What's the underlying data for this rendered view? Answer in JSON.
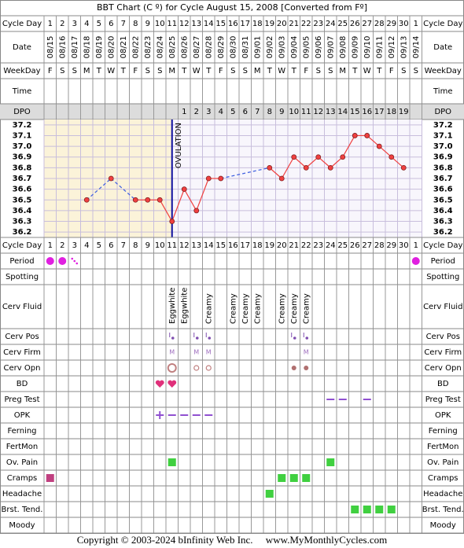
{
  "title": "BBT Chart (C º) for Cycle August 15, 2008  [Converted from Fº]",
  "labels": {
    "cycle_day": "Cycle Day",
    "date": "Date",
    "weekday": "WeekDay",
    "time": "Time",
    "dpo": "DPO"
  },
  "dates": [
    "08/15",
    "08/16",
    "08/17",
    "08/18",
    "08/19",
    "08/20",
    "08/21",
    "08/22",
    "08/23",
    "08/24",
    "08/25",
    "08/26",
    "08/27",
    "08/28",
    "08/29",
    "08/30",
    "08/31",
    "09/01",
    "09/02",
    "09/03",
    "09/04",
    "09/05",
    "09/06",
    "09/07",
    "09/08",
    "09/09",
    "09/10",
    "09/11",
    "09/12",
    "09/13",
    "09/14"
  ],
  "weekdays": [
    "F",
    "S",
    "S",
    "M",
    "T",
    "W",
    "T",
    "F",
    "S",
    "S",
    "M",
    "T",
    "W",
    "T",
    "F",
    "S",
    "S",
    "M",
    "T",
    "W",
    "T",
    "F",
    "S",
    "S",
    "M",
    "T",
    "W",
    "T",
    "F",
    "S",
    "S"
  ],
  "dpo": [
    null,
    null,
    null,
    null,
    null,
    null,
    null,
    null,
    null,
    null,
    null,
    1,
    2,
    3,
    4,
    5,
    6,
    7,
    8,
    9,
    10,
    11,
    12,
    13,
    14,
    15,
    16,
    17,
    18,
    19,
    null
  ],
  "chart_data": {
    "type": "line",
    "categories": [
      1,
      2,
      3,
      4,
      5,
      6,
      7,
      8,
      9,
      10,
      11,
      12,
      13,
      14,
      15,
      16,
      17,
      18,
      19,
      20,
      21,
      22,
      23,
      24,
      25,
      26,
      27,
      28,
      29,
      30,
      1
    ],
    "values": [
      null,
      null,
      null,
      36.5,
      null,
      36.7,
      null,
      36.5,
      36.5,
      36.5,
      36.3,
      36.6,
      36.4,
      36.7,
      36.7,
      null,
      null,
      null,
      36.8,
      36.7,
      36.9,
      36.8,
      36.9,
      36.8,
      36.9,
      37.1,
      37.1,
      37.0,
      36.9,
      36.8,
      null
    ],
    "color": "#f04040",
    "gap_color": "#4060e0",
    "ylim": [
      36.15,
      37.25
    ],
    "yticks": [
      37.2,
      37.1,
      {
        "value": 37,
        "label": "37.0"
      },
      36.9,
      36.8,
      36.7,
      36.6,
      36.5,
      36.4,
      36.3,
      36.2
    ],
    "grid": true,
    "ovulation_day": 11,
    "ovulation_label": "OVULATION",
    "ovulation_color": "#1010a0"
  },
  "symptom_rows": [
    {
      "label": "Period",
      "marks": [
        {
          "days": [
            1,
            2,
            31
          ],
          "shape": "dot",
          "color": "#e020e0"
        },
        {
          "days": [
            3
          ],
          "shape": "specks",
          "color": "#e020e0"
        }
      ]
    },
    {
      "label": "Spotting",
      "marks": []
    },
    {
      "label": "Cerv Fluid",
      "entries": [
        {
          "day": 11,
          "text": "Eggwhite"
        },
        {
          "day": 12,
          "text": "Eggwhite"
        },
        {
          "day": 14,
          "text": "Creamy"
        },
        {
          "day": 16,
          "text": "Creamy"
        },
        {
          "day": 17,
          "text": "Creamy"
        },
        {
          "day": 18,
          "text": "Creamy"
        },
        {
          "day": 20,
          "text": "Creamy"
        },
        {
          "day": 21,
          "text": "Creamy"
        },
        {
          "day": 22,
          "text": "Creamy"
        }
      ]
    },
    {
      "label": "Cerv Pos",
      "marks": [
        {
          "days": [
            11,
            13,
            14,
            21,
            22
          ],
          "shape": "bardot",
          "color": "#8050b0"
        }
      ]
    },
    {
      "label": "Cerv Firm",
      "marks": [
        {
          "days": [
            11,
            13,
            14,
            22
          ],
          "shape": "text",
          "text": "M",
          "color": "#a070c0"
        }
      ]
    },
    {
      "label": "Cerv Opn",
      "marks": [
        {
          "days": [
            11
          ],
          "shape": "ring",
          "color": "#c08080"
        },
        {
          "days": [
            13,
            14
          ],
          "shape": "smallring",
          "color": "#c08080"
        },
        {
          "days": [
            21,
            22
          ],
          "shape": "smalldot",
          "color": "#b07070"
        }
      ]
    },
    {
      "label": "BD",
      "marks": [
        {
          "days": [
            10,
            11
          ],
          "shape": "heart",
          "color": "#e0307a"
        }
      ]
    },
    {
      "label": "Preg Test",
      "marks": [
        {
          "days": [
            24,
            25,
            27
          ],
          "shape": "dash",
          "color": "#9050d0"
        }
      ]
    },
    {
      "label": "OPK",
      "marks": [
        {
          "days": [
            10
          ],
          "shape": "plus",
          "color": "#9050d0"
        },
        {
          "days": [
            11,
            12,
            13,
            14
          ],
          "shape": "dash",
          "color": "#9050d0"
        }
      ]
    },
    {
      "label": "Ferning",
      "marks": []
    },
    {
      "label": "FertMon",
      "marks": []
    },
    {
      "label": "Ov. Pain",
      "marks": [
        {
          "days": [
            11,
            24
          ],
          "shape": "square",
          "color": "#40d040"
        }
      ]
    },
    {
      "label": "Cramps",
      "marks": [
        {
          "days": [
            1
          ],
          "shape": "square",
          "color": "#c04080"
        },
        {
          "days": [
            20,
            21,
            22
          ],
          "shape": "square",
          "color": "#40d040"
        }
      ]
    },
    {
      "label": "Headache",
      "marks": [
        {
          "days": [
            19
          ],
          "shape": "square",
          "color": "#40d040"
        }
      ]
    },
    {
      "label": "Brst. Tend.",
      "marks": [
        {
          "days": [
            26,
            27,
            28,
            29
          ],
          "shape": "square",
          "color": "#40d040"
        }
      ]
    },
    {
      "label": "Moody",
      "marks": []
    }
  ],
  "copyright": "Copyright © 2003-2024 bInfinity Web Inc.     www.MyMonthlyCycles.com"
}
